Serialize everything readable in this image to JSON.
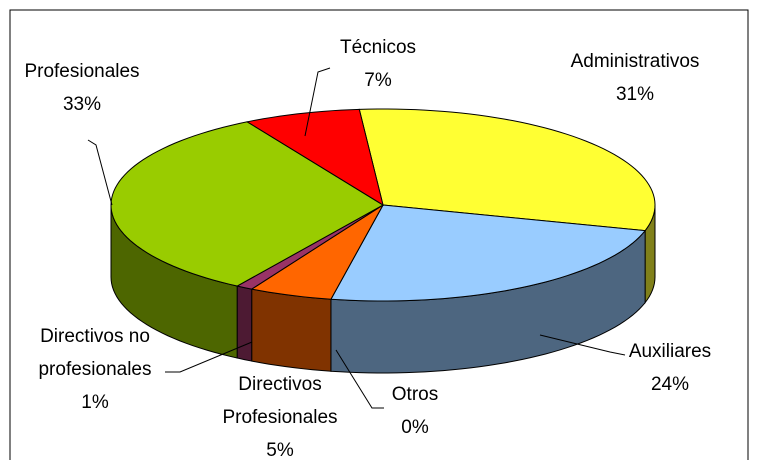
{
  "chart_data": {
    "type": "pie3d",
    "categories": [
      "Administrativos",
      "Auxiliares",
      "Otros",
      "Directivos Profesionales",
      "Directivos no profesionales",
      "Profesionales",
      "Técnicos"
    ],
    "values": [
      31,
      24,
      0,
      5,
      1,
      33,
      7
    ],
    "value_labels": [
      "31%",
      "24%",
      "0%",
      "5%",
      "1%",
      "33%",
      "7%"
    ],
    "colors": [
      "#ffff33",
      "#99ccff",
      "#3366cc",
      "#ff6600",
      "#993366",
      "#99cc00",
      "#ff0000"
    ]
  }
}
